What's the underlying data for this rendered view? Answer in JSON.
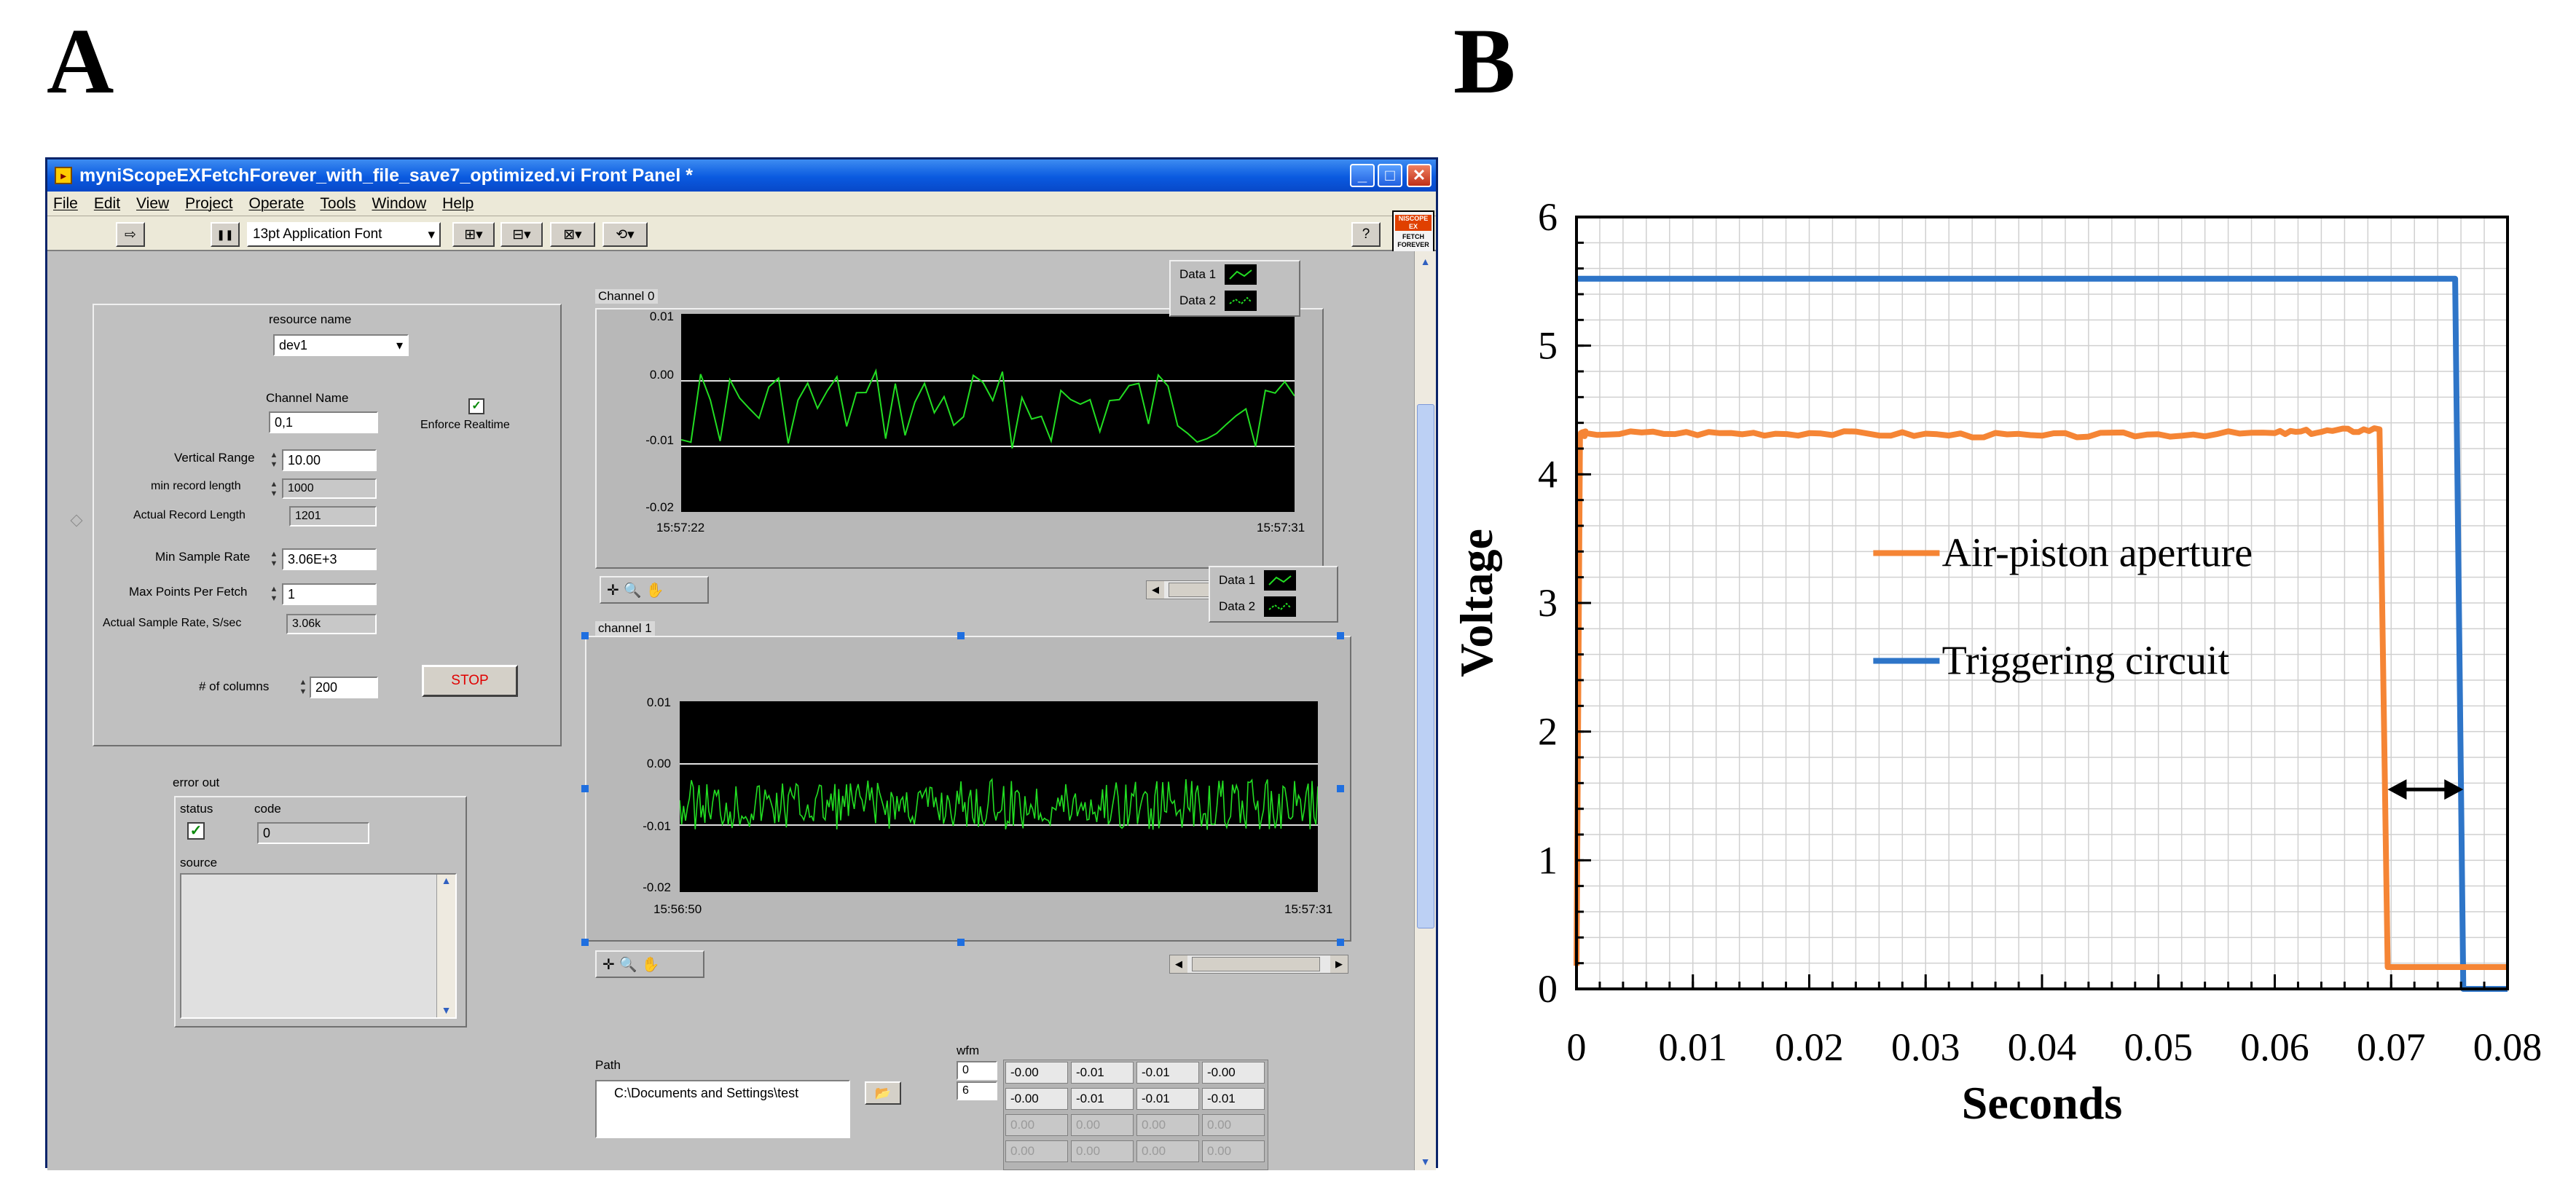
{
  "panel_labels": {
    "a": "A",
    "b": "B"
  },
  "window": {
    "title": "myniScopeEXFetchForever_with_file_save7_optimized.vi Front Panel *",
    "controls": {
      "minimize": "_",
      "maximize": "□",
      "close": "✕"
    }
  },
  "menu": [
    "File",
    "Edit",
    "View",
    "Project",
    "Operate",
    "Tools",
    "Window",
    "Help"
  ],
  "toolbar": {
    "font": "13pt Application Font",
    "run": "⇨",
    "pause": "❚❚",
    "help": "?"
  },
  "corner_logo": {
    "line1": "NISCOPE EX",
    "line2": "FETCH FOREVER"
  },
  "settings": {
    "resource_name_label": "resource name",
    "resource_name_value": "dev1",
    "channel_name_label": "Channel Name",
    "channel_name_value": "0,1",
    "enforce_realtime_label": "Enforce Realtime",
    "enforce_realtime_checked": "✓",
    "vertical_range_label": "Vertical Range",
    "vertical_range_value": "10.00",
    "min_record_length_label": "min record length",
    "min_record_length_value": "1000",
    "actual_record_length_label": "Actual Record Length",
    "actual_record_length_value": "1201",
    "min_sample_rate_label": "Min Sample Rate",
    "min_sample_rate_value": "3.06E+3",
    "max_points_label": "Max Points Per Fetch",
    "max_points_value": "1",
    "actual_sample_rate_label": "Actual Sample Rate, S/sec",
    "actual_sample_rate_value": "3.06k",
    "columns_label": "# of columns",
    "columns_value": "200",
    "stop_label": "STOP"
  },
  "error_out": {
    "label": "error out",
    "status_label": "status",
    "status_check": "✓",
    "code_label": "code",
    "code_value": "0",
    "source_label": "source"
  },
  "graph0": {
    "label": "Channel 0",
    "y_ticks": [
      "0.01",
      "0.00",
      "-0.01",
      "-0.02"
    ],
    "t_start": "15:57:22",
    "t_end": "15:57:31",
    "legend": [
      "Data 1",
      "Data 2"
    ]
  },
  "graph1": {
    "label": "channel 1",
    "y_ticks": [
      "0.01",
      "0.00",
      "-0.01",
      "-0.02"
    ],
    "t_start": "15:56:50",
    "t_end": "15:57:31",
    "legend": [
      "Data 1",
      "Data 2"
    ]
  },
  "path": {
    "label": "Path",
    "value": "C:\\Documents and Settings\\test"
  },
  "wfm": {
    "label": "wfm",
    "index_row": "0",
    "index_col": "6",
    "rows": [
      [
        "-0.00",
        "-0.01",
        "-0.01",
        "-0.00"
      ],
      [
        "-0.00",
        "-0.01",
        "-0.01",
        "-0.01"
      ],
      [
        "0.00",
        "0.00",
        "0.00",
        "0.00"
      ],
      [
        "0.00",
        "0.00",
        "0.00",
        "0.00"
      ]
    ]
  },
  "colors": {
    "trace_green": "#22dd22",
    "blue": "#2e75c8",
    "orange": "#f58535"
  },
  "chart_data": {
    "type": "line",
    "title": "",
    "xlabel": "Seconds",
    "ylabel": "Voltage",
    "xlim": [
      0,
      0.08
    ],
    "ylim": [
      0,
      6
    ],
    "x_tick_labels": [
      "0",
      "0.01",
      "0.02",
      "0.03",
      "0.04",
      "0.05",
      "0.06",
      "0.07",
      "0.08"
    ],
    "y_tick_labels": [
      "0",
      "1",
      "2",
      "3",
      "4",
      "5",
      "6"
    ],
    "grid": true,
    "legend_position": "center",
    "series": [
      {
        "name": "Triggering circuit",
        "color": "#2e75c8",
        "x": [
          0,
          0.0755,
          0.0762,
          0.08
        ],
        "y": [
          5.52,
          5.52,
          0.0,
          0.0
        ]
      },
      {
        "name": "Air-piston aperture",
        "color": "#f58535",
        "x": [
          0,
          0.0003,
          0.0008,
          0.02,
          0.04,
          0.06,
          0.069,
          0.0697,
          0.08
        ],
        "y": [
          0.18,
          4.3,
          4.32,
          4.32,
          4.3,
          4.32,
          4.35,
          0.17,
          0.17
        ]
      }
    ],
    "annotation": {
      "type": "double-arrow",
      "x_from": 0.0697,
      "x_to": 0.0762,
      "y": 1.55
    }
  }
}
